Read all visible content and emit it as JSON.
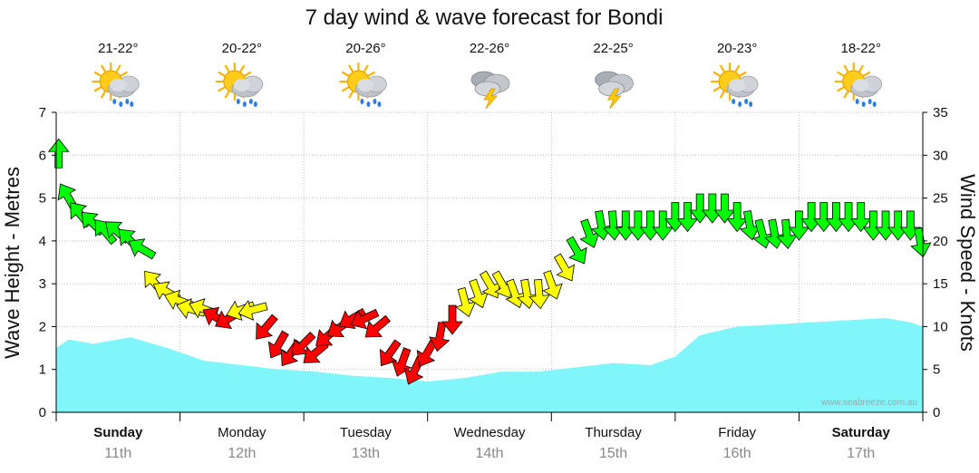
{
  "chart_data": {
    "type": "area",
    "title": "7 day wind & wave forecast for Bondi",
    "ylabel_left": "Wave Height - Metres",
    "ylabel_right": "Wind Speed - Knots",
    "ylim_left": [
      0,
      7
    ],
    "ylim_right": [
      0,
      35
    ],
    "left_ticks": [
      "0",
      "1",
      "2",
      "3",
      "4",
      "5",
      "6",
      "7"
    ],
    "right_ticks": [
      "0",
      "5",
      "10",
      "15",
      "20",
      "25",
      "30",
      "35"
    ],
    "grid": true,
    "credit": "www.seabreeze.com.au",
    "days": [
      {
        "day": "Sunday",
        "date": "11th",
        "bold": true,
        "temp": "21-22°",
        "weather": "sun-cloud-rain-icon"
      },
      {
        "day": "Monday",
        "date": "12th",
        "bold": false,
        "temp": "20-22°",
        "weather": "sun-cloud-rain-icon"
      },
      {
        "day": "Tuesday",
        "date": "13th",
        "bold": false,
        "temp": "20-26°",
        "weather": "sun-cloud-rain-icon"
      },
      {
        "day": "Wednesday",
        "date": "14th",
        "bold": false,
        "temp": "22-26°",
        "weather": "storm-cloud-icon"
      },
      {
        "day": "Thursday",
        "date": "15th",
        "bold": false,
        "temp": "22-25°",
        "weather": "storm-cloud-icon"
      },
      {
        "day": "Friday",
        "date": "16th",
        "bold": false,
        "temp": "20-23°",
        "weather": "sun-cloud-rain-icon"
      },
      {
        "day": "Saturday",
        "date": "17th",
        "bold": true,
        "temp": "18-22°",
        "weather": "sun-cloud-rain-icon"
      }
    ],
    "series": [
      {
        "type": "area",
        "axis": "left",
        "unit": "metres",
        "color": "#80f6fa",
        "x_days": [
          0,
          0.1,
          0.3,
          0.6,
          0.9,
          1.2,
          1.5,
          1.8,
          2.1,
          2.4,
          2.7,
          3.0,
          3.3,
          3.6,
          3.9,
          4.2,
          4.5,
          4.8,
          5.0,
          5.2,
          5.5,
          5.8,
          6.1,
          6.4,
          6.7,
          6.9,
          7.0
        ],
        "values": [
          1.5,
          1.7,
          1.6,
          1.75,
          1.5,
          1.2,
          1.1,
          1.0,
          0.95,
          0.85,
          0.8,
          0.72,
          0.8,
          0.95,
          0.95,
          1.05,
          1.15,
          1.1,
          1.3,
          1.8,
          2.0,
          2.05,
          2.1,
          2.15,
          2.2,
          2.1,
          2.0
        ]
      },
      {
        "type": "arrows",
        "axis": "right",
        "unit": "knots",
        "colors": {
          "strong": "#ff0000",
          "moderate": "#ffff00",
          "light": "#00ff00"
        },
        "x_days": [
          0.02,
          0.1,
          0.2,
          0.3,
          0.4,
          0.5,
          0.6,
          0.7,
          0.8,
          0.9,
          1.0,
          1.1,
          1.2,
          1.3,
          1.4,
          1.5,
          1.6,
          1.7,
          1.8,
          1.9,
          2.0,
          2.1,
          2.2,
          2.3,
          2.4,
          2.5,
          2.6,
          2.7,
          2.8,
          2.9,
          3.0,
          3.1,
          3.2,
          3.3,
          3.4,
          3.5,
          3.6,
          3.7,
          3.8,
          3.9,
          4.0,
          4.1,
          4.2,
          4.3,
          4.4,
          4.5,
          4.6,
          4.7,
          4.8,
          4.9,
          5.0,
          5.1,
          5.2,
          5.3,
          5.4,
          5.5,
          5.6,
          5.7,
          5.8,
          5.9,
          6.0,
          6.1,
          6.2,
          6.3,
          6.4,
          6.5,
          6.6,
          6.7,
          6.8,
          6.9,
          6.98
        ],
        "values": [
          30,
          25,
          23,
          22,
          21,
          21,
          20,
          19,
          15,
          14,
          13,
          12,
          12,
          11,
          11,
          12,
          12,
          10,
          8,
          7,
          8,
          7,
          9,
          10,
          11,
          11,
          10,
          7,
          6,
          5,
          7,
          9,
          11,
          13,
          14,
          15,
          15,
          14,
          14,
          14,
          15,
          17,
          19,
          21,
          22,
          22,
          22,
          22,
          22,
          22,
          23,
          23,
          24,
          24,
          24,
          23,
          22,
          21,
          21,
          21,
          22,
          23,
          23,
          23,
          23,
          23,
          22,
          22,
          22,
          22,
          20
        ],
        "direction_deg": [
          0,
          330,
          320,
          315,
          320,
          310,
          315,
          300,
          320,
          300,
          290,
          285,
          290,
          300,
          240,
          250,
          255,
          220,
          210,
          215,
          225,
          230,
          230,
          235,
          240,
          245,
          230,
          215,
          200,
          205,
          210,
          190,
          180,
          165,
          160,
          150,
          150,
          160,
          170,
          175,
          160,
          150,
          150,
          160,
          170,
          175,
          180,
          180,
          180,
          180,
          180,
          180,
          180,
          180,
          180,
          180,
          170,
          165,
          170,
          175,
          180,
          180,
          180,
          180,
          180,
          180,
          180,
          180,
          180,
          180,
          170
        ]
      }
    ]
  }
}
